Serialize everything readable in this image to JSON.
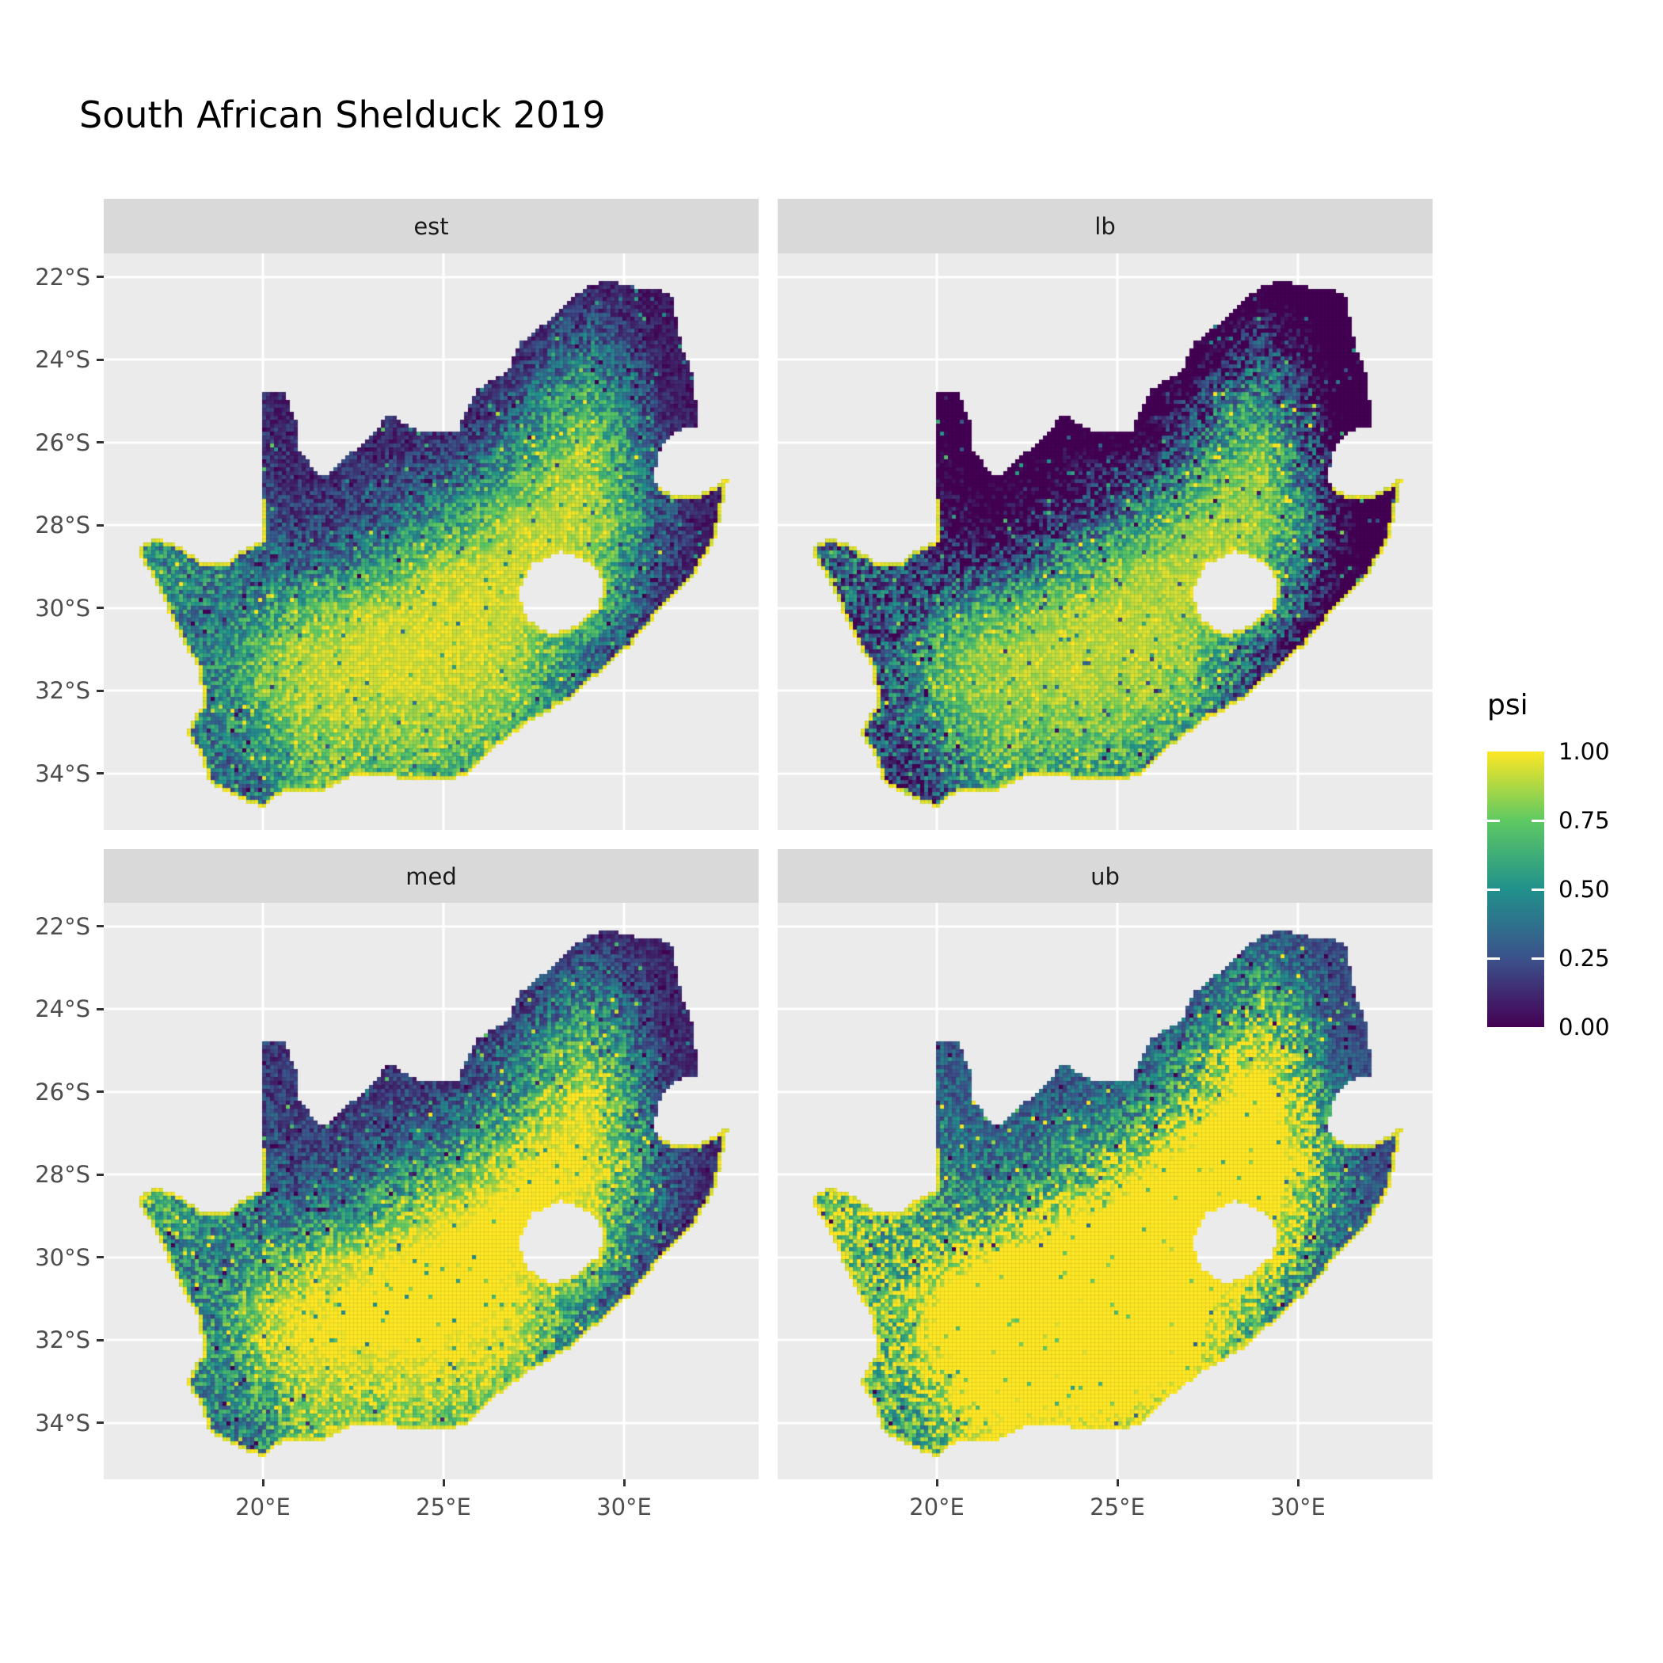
{
  "chart_data": {
    "type": "heatmap",
    "title": "South African Shelduck 2019",
    "facets": [
      {
        "label": "est",
        "gain": 1.0,
        "offset": 0.0
      },
      {
        "label": "lb",
        "gain": 1.25,
        "offset": -0.28
      },
      {
        "label": "med",
        "gain": 1.08,
        "offset": 0.04
      },
      {
        "label": "ub",
        "gain": 1.35,
        "offset": 0.14
      }
    ],
    "x_axis": {
      "ticks": [
        {
          "label": "20°E",
          "lon": 20
        },
        {
          "label": "25°E",
          "lon": 25
        },
        {
          "label": "30°E",
          "lon": 30
        }
      ]
    },
    "y_axis": {
      "ticks": [
        {
          "label": "22°S",
          "lat": 22
        },
        {
          "label": "24°S",
          "lat": 24
        },
        {
          "label": "26°S",
          "lat": 26
        },
        {
          "label": "28°S",
          "lat": 28
        },
        {
          "label": "30°S",
          "lat": 30
        },
        {
          "label": "32°S",
          "lat": 32
        },
        {
          "label": "34°S",
          "lat": 34
        }
      ]
    },
    "legend": {
      "title": "psi",
      "ticks": [
        {
          "label": "1.00",
          "value": 1.0
        },
        {
          "label": "0.75",
          "value": 0.75
        },
        {
          "label": "0.50",
          "value": 0.5
        },
        {
          "label": "0.25",
          "value": 0.25
        },
        {
          "label": "0.00",
          "value": 0.0
        }
      ]
    },
    "colormap": {
      "name": "viridis",
      "anchors": [
        {
          "t": 0.0,
          "color": "#440154"
        },
        {
          "t": 0.25,
          "color": "#3b528b"
        },
        {
          "t": 0.5,
          "color": "#21918c"
        },
        {
          "t": 0.75,
          "color": "#5ec962"
        },
        {
          "t": 1.0,
          "color": "#fde725"
        }
      ]
    },
    "psi_grid": {
      "lon_start": 16,
      "lat_start": 22,
      "step": 1,
      "values": [
        [
          0.2,
          0.2,
          0.2,
          0.2,
          0.2,
          0.2,
          0.2,
          0.2,
          0.2,
          0.15,
          0.12,
          0.1,
          0.08,
          0.08,
          0.06,
          0.06,
          0.06,
          0.06
        ],
        [
          0.2,
          0.2,
          0.2,
          0.2,
          0.2,
          0.2,
          0.2,
          0.2,
          0.18,
          0.15,
          0.12,
          0.1,
          0.15,
          0.25,
          0.15,
          0.08,
          0.06,
          0.06
        ],
        [
          0.2,
          0.2,
          0.2,
          0.2,
          0.2,
          0.2,
          0.15,
          0.12,
          0.1,
          0.1,
          0.1,
          0.12,
          0.3,
          0.45,
          0.3,
          0.1,
          0.06,
          0.06
        ],
        [
          0.25,
          0.25,
          0.25,
          0.25,
          0.12,
          0.1,
          0.1,
          0.1,
          0.1,
          0.12,
          0.15,
          0.3,
          0.55,
          0.65,
          0.45,
          0.12,
          0.06,
          0.06
        ],
        [
          0.3,
          0.3,
          0.3,
          0.3,
          0.15,
          0.12,
          0.12,
          0.12,
          0.15,
          0.15,
          0.25,
          0.45,
          0.7,
          0.85,
          0.55,
          0.2,
          0.08,
          0.06
        ],
        [
          0.35,
          0.35,
          0.35,
          0.3,
          0.2,
          0.15,
          0.15,
          0.2,
          0.25,
          0.35,
          0.5,
          0.7,
          0.88,
          0.9,
          0.6,
          0.25,
          0.1,
          0.08
        ],
        [
          0.45,
          0.45,
          0.45,
          0.4,
          0.25,
          0.2,
          0.22,
          0.3,
          0.45,
          0.6,
          0.75,
          0.9,
          0.92,
          0.9,
          0.7,
          0.3,
          0.1,
          0.08
        ],
        [
          0.55,
          0.55,
          0.5,
          0.45,
          0.35,
          0.35,
          0.45,
          0.6,
          0.75,
          0.88,
          0.93,
          0.95,
          0.92,
          0.85,
          0.55,
          0.25,
          0.08,
          0.08
        ],
        [
          0.5,
          0.5,
          0.45,
          0.4,
          0.55,
          0.7,
          0.8,
          0.88,
          0.93,
          0.95,
          0.95,
          0.92,
          0.85,
          0.8,
          0.45,
          0.12,
          0.06,
          0.06
        ],
        [
          0.5,
          0.45,
          0.4,
          0.5,
          0.75,
          0.88,
          0.92,
          0.95,
          0.95,
          0.95,
          0.95,
          0.9,
          0.7,
          0.45,
          0.2,
          0.08,
          0.06,
          0.06
        ],
        [
          0.5,
          0.5,
          0.45,
          0.5,
          0.8,
          0.9,
          0.93,
          0.93,
          0.95,
          0.92,
          0.9,
          0.85,
          0.55,
          0.3,
          0.1,
          0.06,
          0.06,
          0.06
        ],
        [
          0.5,
          0.5,
          0.45,
          0.45,
          0.6,
          0.8,
          0.85,
          0.83,
          0.85,
          0.85,
          0.8,
          0.7,
          0.45,
          0.2,
          0.08,
          0.06,
          0.06,
          0.06
        ],
        [
          0.5,
          0.5,
          0.45,
          0.35,
          0.45,
          0.7,
          0.78,
          0.7,
          0.72,
          0.7,
          0.6,
          0.45,
          0.3,
          0.15,
          0.08,
          0.06,
          0.06,
          0.06
        ],
        [
          0.5,
          0.5,
          0.45,
          0.3,
          0.4,
          0.6,
          0.7,
          0.65,
          0.65,
          0.6,
          0.5,
          0.4,
          0.25,
          0.12,
          0.06,
          0.06,
          0.06,
          0.06
        ]
      ]
    },
    "boundary": {
      "mainland": [
        [
          16.48,
          28.58
        ],
        [
          17.05,
          28.3
        ],
        [
          17.65,
          28.48
        ],
        [
          18.25,
          28.85
        ],
        [
          19.0,
          28.9
        ],
        [
          19.6,
          28.5
        ],
        [
          19.99,
          28.42
        ],
        [
          19.99,
          24.77
        ],
        [
          20.6,
          24.82
        ],
        [
          20.9,
          25.4
        ],
        [
          21.0,
          26.2
        ],
        [
          21.65,
          26.85
        ],
        [
          22.2,
          26.4
        ],
        [
          22.9,
          25.95
        ],
        [
          23.5,
          25.3
        ],
        [
          24.4,
          25.78
        ],
        [
          25.4,
          25.72
        ],
        [
          25.9,
          24.72
        ],
        [
          26.8,
          24.28
        ],
        [
          27.1,
          23.6
        ],
        [
          28.0,
          23.0
        ],
        [
          29.0,
          22.18
        ],
        [
          29.7,
          22.1
        ],
        [
          30.5,
          22.3
        ],
        [
          31.3,
          22.35
        ],
        [
          31.6,
          23.7
        ],
        [
          31.95,
          24.4
        ],
        [
          32.02,
          25.6
        ],
        [
          31.4,
          25.72
        ],
        [
          30.95,
          26.25
        ],
        [
          30.82,
          26.9
        ],
        [
          31.15,
          27.2
        ],
        [
          31.95,
          27.32
        ],
        [
          32.88,
          26.86
        ],
        [
          32.55,
          28.3
        ],
        [
          31.95,
          29.2
        ],
        [
          31.05,
          30.0
        ],
        [
          30.25,
          30.85
        ],
        [
          29.4,
          31.5
        ],
        [
          28.5,
          32.2
        ],
        [
          27.4,
          32.75
        ],
        [
          26.45,
          33.35
        ],
        [
          25.6,
          34.05
        ],
        [
          24.8,
          34.2
        ],
        [
          23.6,
          34.1
        ],
        [
          22.55,
          34.05
        ],
        [
          21.7,
          34.42
        ],
        [
          20.5,
          34.48
        ],
        [
          19.98,
          34.82
        ],
        [
          19.35,
          34.62
        ],
        [
          18.82,
          34.38
        ],
        [
          18.45,
          34.1
        ],
        [
          18.3,
          33.6
        ],
        [
          17.88,
          33.0
        ],
        [
          18.35,
          32.3
        ],
        [
          18.2,
          31.45
        ],
        [
          17.6,
          30.5
        ],
        [
          17.05,
          29.4
        ]
      ],
      "lesotho": [
        [
          27.05,
          29.6
        ],
        [
          27.45,
          28.95
        ],
        [
          28.25,
          28.62
        ],
        [
          29.1,
          28.92
        ],
        [
          29.45,
          29.4
        ],
        [
          29.3,
          29.95
        ],
        [
          28.7,
          30.42
        ],
        [
          27.95,
          30.62
        ],
        [
          27.35,
          30.28
        ]
      ]
    },
    "theme": {
      "panel_bg": "#ebebeb",
      "strip_bg": "#d9d9d9",
      "grid_color": "#ffffff",
      "axis_text_color": "#4d4d4d",
      "tick_color": "#333333"
    }
  }
}
